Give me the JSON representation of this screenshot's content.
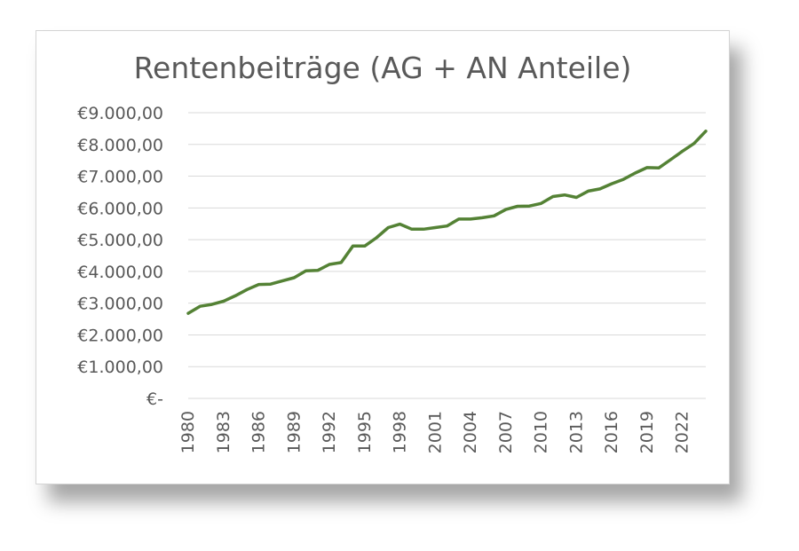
{
  "chart_data": {
    "type": "line",
    "title": "Rentenbeiträge (AG + AN Anteile)",
    "xlabel": "",
    "ylabel": "",
    "x": [
      1980,
      1981,
      1982,
      1983,
      1984,
      1985,
      1986,
      1987,
      1988,
      1989,
      1990,
      1991,
      1992,
      1993,
      1994,
      1995,
      1996,
      1997,
      1998,
      1999,
      2000,
      2001,
      2002,
      2003,
      2004,
      2005,
      2006,
      2007,
      2008,
      2009,
      2010,
      2011,
      2012,
      2013,
      2014,
      2015,
      2016,
      2017,
      2018,
      2019,
      2020,
      2021,
      2022,
      2023,
      2024
    ],
    "series": [
      {
        "color": "#548235",
        "values": [
          2680,
          2900,
          2960,
          3060,
          3230,
          3430,
          3590,
          3600,
          3700,
          3800,
          4020,
          4030,
          4220,
          4280,
          4800,
          4800,
          5060,
          5380,
          5490,
          5330,
          5330,
          5380,
          5430,
          5650,
          5650,
          5690,
          5750,
          5950,
          6050,
          6060,
          6140,
          6360,
          6410,
          6330,
          6530,
          6600,
          6760,
          6900,
          7100,
          7270,
          7260,
          7520,
          7780,
          8030,
          8420
        ]
      }
    ],
    "x_tick_labels": [
      "1980",
      "1983",
      "1986",
      "1989",
      "1992",
      "1995",
      "1998",
      "2001",
      "2004",
      "2007",
      "2010",
      "2013",
      "2016",
      "2019",
      "2022"
    ],
    "y_tick_labels": [
      "€9.000,00",
      "€8.000,00",
      "€7.000,00",
      "€6.000,00",
      "€5.000,00",
      "€4.000,00",
      "€3.000,00",
      "€2.000,00",
      "€1.000,00",
      "€-"
    ],
    "y_ticks": [
      9000,
      8000,
      7000,
      6000,
      5000,
      4000,
      3000,
      2000,
      1000,
      0
    ],
    "ylim": [
      0,
      9000
    ],
    "grid": "horizontal",
    "legend": "none",
    "colors": {
      "grid": "#d9d9d9",
      "text": "#595959",
      "line": "#548235"
    }
  }
}
